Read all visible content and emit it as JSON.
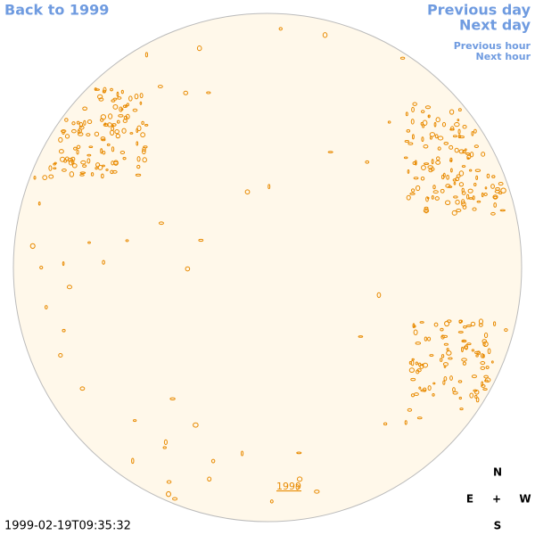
{
  "links": {
    "back": "Back to 1999",
    "previous_day": "Previous day",
    "next_day": "Next day",
    "previous_hour": "Previous hour",
    "next_hour": "Next hour"
  },
  "year_link": "1999",
  "compass": {
    "north": "N",
    "east": "E",
    "center": "+",
    "west": "W",
    "south": "S"
  },
  "timestamp": "1999-02-19T09:35:32"
}
